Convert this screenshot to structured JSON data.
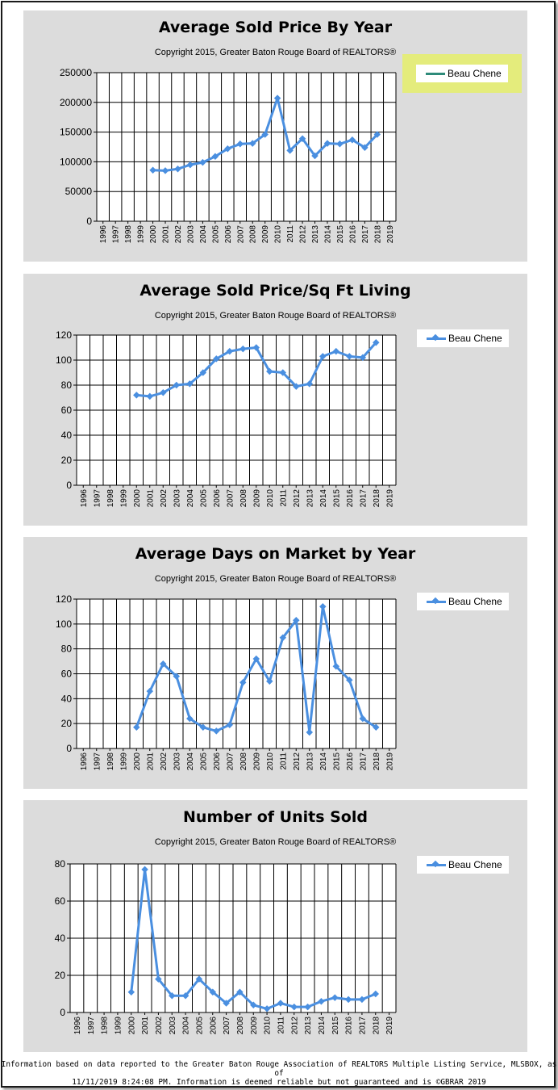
{
  "charts": [
    {
      "title": "Average Sold Price By Year",
      "subtitle": "Copyright 2015, Greater Baton Rouge Board of REALTORS®",
      "legend": "Beau Chene"
    },
    {
      "title": "Average Sold Price/Sq Ft Living",
      "subtitle": "Copyright 2015, Greater Baton Rouge Board of REALTORS®",
      "legend": "Beau Chene"
    },
    {
      "title": "Average Days on Market by Year",
      "subtitle": "Copyright 2015, Greater Baton Rouge Board of REALTORS®",
      "legend": "Beau Chene"
    },
    {
      "title": "Number of Units Sold",
      "subtitle": "Copyright 2015, Greater Baton Rouge Board of REALTORS®",
      "legend": "Beau Chene"
    }
  ],
  "footer": {
    "line1": "Information based on data reported to the Greater Baton Rouge Association of REALTORS Multiple Listing Service, MLSBOX, as of",
    "line2": "11/11/2019 8:24:08 PM. Information is deemed reliable but not guaranteed and is ©GBRAR 2019"
  },
  "colors": {
    "series": "#4a8fe0",
    "legend_first_chart": "#2e8b7a",
    "legend_highlight": "#e4ec7c",
    "panel": "#dcdcdc"
  },
  "chart_data": [
    {
      "type": "line",
      "title": "Average Sold Price By Year",
      "x": [
        "1996",
        "1997",
        "1998",
        "1999",
        "2000",
        "2001",
        "2002",
        "2003",
        "2004",
        "2005",
        "2006",
        "2007",
        "2008",
        "2009",
        "2010",
        "2011",
        "2012",
        "2013",
        "2014",
        "2015",
        "2016",
        "2017",
        "2018",
        "2019"
      ],
      "yticks": [
        0,
        50000,
        100000,
        150000,
        200000,
        250000
      ],
      "ylim": [
        0,
        250000
      ],
      "grid": true,
      "legend_position": "top-right",
      "series": [
        {
          "name": "Beau Chene",
          "points": [
            [
              "2000",
              86000
            ],
            [
              "2001",
              85000
            ],
            [
              "2002",
              88000
            ],
            [
              "2003",
              95000
            ],
            [
              "2004",
              99000
            ],
            [
              "2005",
              109000
            ],
            [
              "2006",
              122000
            ],
            [
              "2007",
              130000
            ],
            [
              "2008",
              131000
            ],
            [
              "2009",
              146000
            ],
            [
              "2010",
              207000
            ],
            [
              "2011",
              119000
            ],
            [
              "2012",
              139000
            ],
            [
              "2013",
              110000
            ],
            [
              "2014",
              131000
            ],
            [
              "2015",
              130000
            ],
            [
              "2016",
              137000
            ],
            [
              "2017",
              124000
            ],
            [
              "2018",
              146000
            ]
          ]
        }
      ]
    },
    {
      "type": "line",
      "title": "Average Sold Price/Sq Ft Living",
      "x": [
        "1996",
        "1997",
        "1998",
        "1999",
        "2000",
        "2001",
        "2002",
        "2003",
        "2004",
        "2005",
        "2006",
        "2007",
        "2008",
        "2009",
        "2010",
        "2011",
        "2012",
        "2013",
        "2014",
        "2015",
        "2016",
        "2017",
        "2018",
        "2019"
      ],
      "yticks": [
        0,
        20,
        40,
        60,
        80,
        100,
        120
      ],
      "ylim": [
        0,
        120
      ],
      "grid": true,
      "legend_position": "top-right",
      "series": [
        {
          "name": "Beau Chene",
          "points": [
            [
              "2000",
              72
            ],
            [
              "2001",
              71
            ],
            [
              "2002",
              74
            ],
            [
              "2003",
              80
            ],
            [
              "2004",
              81
            ],
            [
              "2005",
              90
            ],
            [
              "2006",
              101
            ],
            [
              "2007",
              107
            ],
            [
              "2008",
              109
            ],
            [
              "2009",
              110
            ],
            [
              "2010",
              91
            ],
            [
              "2011",
              90
            ],
            [
              "2012",
              79
            ],
            [
              "2013",
              81
            ],
            [
              "2014",
              103
            ],
            [
              "2015",
              107
            ],
            [
              "2016",
              103
            ],
            [
              "2017",
              102
            ],
            [
              "2018",
              114
            ]
          ]
        }
      ]
    },
    {
      "type": "line",
      "title": "Average Days on Market by Year",
      "x": [
        "1996",
        "1997",
        "1998",
        "1999",
        "2000",
        "2001",
        "2002",
        "2003",
        "2004",
        "2005",
        "2006",
        "2007",
        "2008",
        "2009",
        "2010",
        "2011",
        "2012",
        "2013",
        "2014",
        "2015",
        "2016",
        "2017",
        "2018",
        "2019"
      ],
      "yticks": [
        0,
        20,
        40,
        60,
        80,
        100,
        120
      ],
      "ylim": [
        0,
        120
      ],
      "grid": true,
      "legend_position": "top-right",
      "series": [
        {
          "name": "Beau Chene",
          "points": [
            [
              "2000",
              17
            ],
            [
              "2001",
              46
            ],
            [
              "2002",
              68
            ],
            [
              "2003",
              58
            ],
            [
              "2004",
              24
            ],
            [
              "2005",
              17
            ],
            [
              "2006",
              14
            ],
            [
              "2007",
              19
            ],
            [
              "2008",
              53
            ],
            [
              "2009",
              72
            ],
            [
              "2010",
              54
            ],
            [
              "2011",
              89
            ],
            [
              "2012",
              103
            ],
            [
              "2013",
              13
            ],
            [
              "2014",
              114
            ],
            [
              "2015",
              66
            ],
            [
              "2016",
              55
            ],
            [
              "2017",
              24
            ],
            [
              "2018",
              17
            ]
          ]
        }
      ]
    },
    {
      "type": "line",
      "title": "Number of Units Sold",
      "x": [
        "1996",
        "1997",
        "1998",
        "1999",
        "2000",
        "2001",
        "2002",
        "2003",
        "2004",
        "2005",
        "2006",
        "2007",
        "2008",
        "2009",
        "2010",
        "2011",
        "2012",
        "2013",
        "2014",
        "2015",
        "2016",
        "2017",
        "2018",
        "2019"
      ],
      "yticks": [
        0,
        20,
        40,
        60,
        80
      ],
      "ylim": [
        0,
        80
      ],
      "grid": true,
      "legend_position": "top-right",
      "series": [
        {
          "name": "Beau Chene",
          "points": [
            [
              "2000",
              11
            ],
            [
              "2001",
              77
            ],
            [
              "2002",
              18
            ],
            [
              "2003",
              9
            ],
            [
              "2004",
              9
            ],
            [
              "2005",
              18
            ],
            [
              "2006",
              11
            ],
            [
              "2007",
              5
            ],
            [
              "2008",
              11
            ],
            [
              "2009",
              4
            ],
            [
              "2010",
              2
            ],
            [
              "2011",
              5
            ],
            [
              "2012",
              3
            ],
            [
              "2013",
              3
            ],
            [
              "2014",
              6
            ],
            [
              "2015",
              8
            ],
            [
              "2016",
              7
            ],
            [
              "2017",
              7
            ],
            [
              "2018",
              10
            ]
          ]
        }
      ]
    }
  ]
}
